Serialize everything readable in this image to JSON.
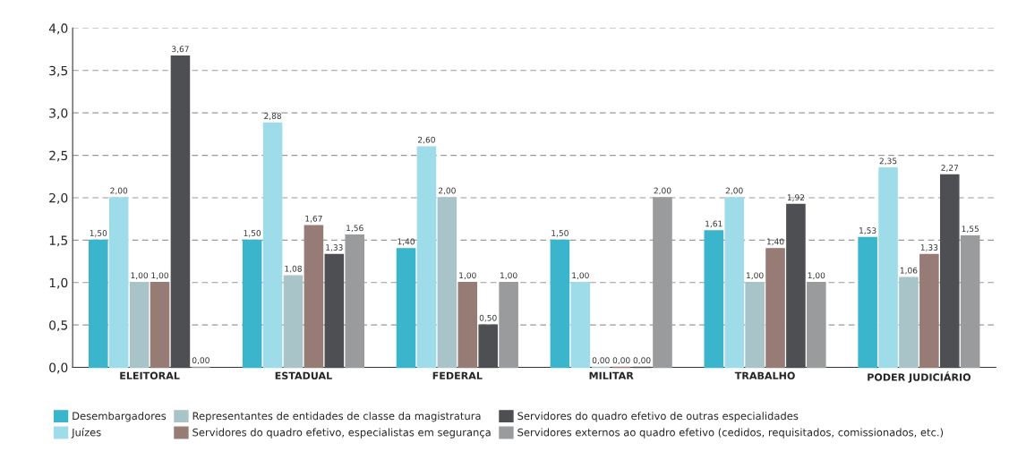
{
  "chart_data": {
    "type": "bar",
    "categories": [
      "ELEITORAL",
      "ESTADUAL",
      "FEDERAL",
      "MILITAR",
      "TRABALHO",
      "PODER JUDICIÁRIO"
    ],
    "series": [
      {
        "name": "Desembargadores",
        "color": "#3bb5cc",
        "values": [
          1.5,
          1.5,
          1.4,
          1.5,
          1.61,
          1.53
        ],
        "value_labels": [
          "1,50",
          "1,50",
          "1,40",
          "1,50",
          "1,61",
          "1,53"
        ]
      },
      {
        "name": "Juízes",
        "color": "#9fdcea",
        "values": [
          2.0,
          2.88,
          2.6,
          1.0,
          2.0,
          2.35
        ],
        "value_labels": [
          "2,00",
          "2,88",
          "2,60",
          "1,00",
          "2,00",
          "2,35"
        ]
      },
      {
        "name": "Representantes de entidades de classe da magistratura",
        "color": "#a9c4c8",
        "values": [
          1.0,
          1.08,
          2.0,
          0.0,
          1.0,
          1.06
        ],
        "value_labels": [
          "1,00",
          "1,08",
          "2,00",
          "0,00",
          "1,00",
          "1,06"
        ]
      },
      {
        "name": "Servidores do quadro efetivo, especialistas em segurança",
        "color": "#977c76",
        "values": [
          1.0,
          1.67,
          1.0,
          0.0,
          1.4,
          1.33
        ],
        "value_labels": [
          "1,00",
          "1,67",
          "1,00",
          "0,00",
          "1,40",
          "1,33"
        ]
      },
      {
        "name": "Servidores do quadro efetivo de outras especialidades",
        "color": "#4d4f52",
        "values": [
          3.67,
          1.33,
          0.5,
          0.0,
          1.92,
          2.27
        ],
        "value_labels": [
          "3,67",
          "1,33",
          "0,50",
          "0,00",
          "1,92",
          "2,27"
        ]
      },
      {
        "name": "Servidores externos ao quadro efetivo (cedidos, requisitados, comissionados, etc.)",
        "color": "#9a9b9d",
        "values": [
          0.0,
          1.56,
          1.0,
          2.0,
          1.0,
          1.55
        ],
        "value_labels": [
          "0,00",
          "1,56",
          "1,00",
          "2,00",
          "1,00",
          "1,55"
        ]
      }
    ],
    "ylim": [
      0,
      4.0
    ],
    "yticks": [
      {
        "value": 0,
        "label": "0,0"
      },
      {
        "value": 0.5,
        "label": "0,5"
      },
      {
        "value": 1.0,
        "label": "1,0"
      },
      {
        "value": 1.5,
        "label": "1,5"
      },
      {
        "value": 2.0,
        "label": "2,0"
      },
      {
        "value": 2.5,
        "label": "2,5"
      },
      {
        "value": 3.0,
        "label": "3,0"
      },
      {
        "value": 3.5,
        "label": "3,5"
      },
      {
        "value": 4.0,
        "label": "4,0"
      }
    ],
    "grid": "y",
    "legend": "bottom"
  }
}
